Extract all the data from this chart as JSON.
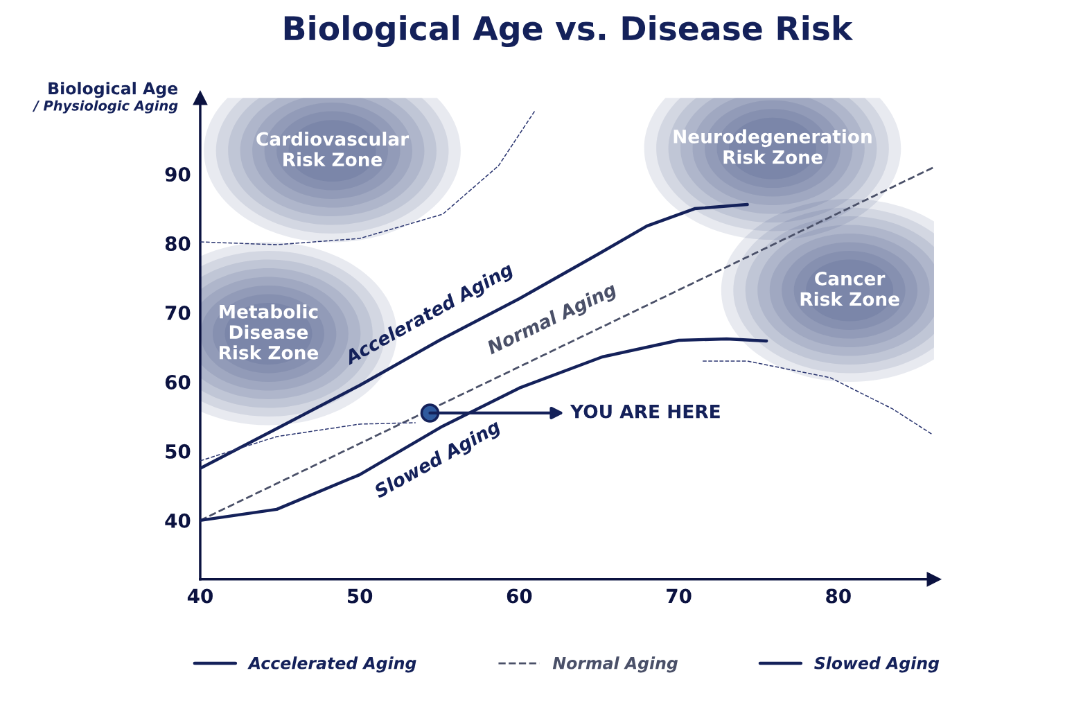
{
  "chart_data": {
    "type": "line",
    "title": "Biological Age vs. Disease Risk",
    "ylabel": "Biological Age\n/ Physiologic Aging",
    "xlim": [
      40,
      86
    ],
    "ylim": [
      31.5,
      101
    ],
    "xticks": [
      40,
      50,
      60,
      70,
      80
    ],
    "yticks": [
      40,
      50,
      60,
      70,
      80,
      90
    ],
    "grid": false,
    "legend": "bottom",
    "series": [
      {
        "name": "Accelerated Aging",
        "color": "#14215a",
        "line_style": "solid",
        "x": [
          40,
          45,
          50,
          55,
          60,
          65,
          68,
          71,
          74.3
        ],
        "values": [
          47.5,
          53.5,
          59.5,
          66,
          72,
          78.5,
          82.5,
          85,
          85.6
        ]
      },
      {
        "name": "Normal Aging",
        "color": "#4a5068",
        "line_style": "dashed",
        "x": [
          40,
          86
        ],
        "values": [
          40,
          91
        ]
      },
      {
        "name": "Slowed Aging",
        "color": "#14215a",
        "line_style": "solid",
        "x": [
          40,
          44.8,
          50,
          55.2,
          60,
          65.2,
          70,
          73,
          75.5
        ],
        "values": [
          40,
          41.6,
          46.6,
          53.6,
          59.1,
          63.6,
          66,
          66.2,
          65.9
        ]
      },
      {
        "color": "#2a3570",
        "line_style": "dashed",
        "x": [
          40,
          44.8,
          50,
          55.2,
          58.7,
          61
        ],
        "values": [
          80.2,
          79.8,
          80.7,
          84.2,
          91.2,
          99.2
        ]
      },
      {
        "color": "#2a3570",
        "line_style": "dashed",
        "x": [
          40,
          44.8,
          50,
          53.5
        ],
        "values": [
          48.6,
          52.1,
          53.9,
          54.1
        ]
      },
      {
        "color": "#2a3570",
        "line_style": "dashed",
        "x": [
          71.5,
          74.3,
          79.5,
          83.4,
          85.9
        ],
        "values": [
          63,
          63,
          60.6,
          56.1,
          52.4
        ]
      },
      {
        "type": "scatter",
        "color": "#2f5a9e",
        "x": [
          54.4
        ],
        "values": [
          55.5
        ]
      }
    ],
    "annotations": [
      "Cardiovascular\nRisk Zone",
      "Neurodegeneration\nRisk Zone",
      "Cancer\nRisk Zone",
      "Metabolic\nDisease\nRisk Zone",
      {
        "text": "YOU ARE HERE",
        "x": 54.4,
        "y": 55.5
      }
    ]
  }
}
